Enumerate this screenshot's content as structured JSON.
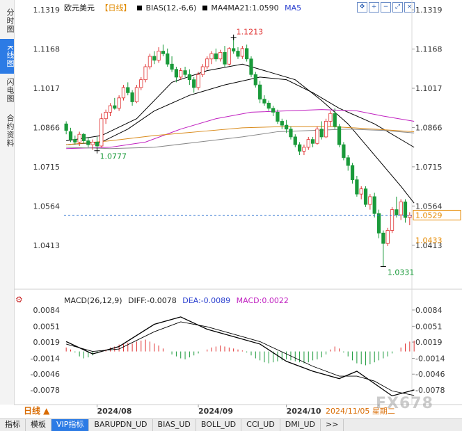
{
  "left_tabs": [
    {
      "label": "分时图",
      "active": false
    },
    {
      "label": "K线图",
      "active": true
    },
    {
      "label": "闪电图",
      "active": false
    },
    {
      "label": "合约资料",
      "active": false
    }
  ],
  "header": {
    "symbol": "欧元美元",
    "period": "【日线】",
    "bias": "BIAS(12,-6,6)",
    "ma": "MA4MA21:1.0590",
    "ma5": "MA5"
  },
  "toolbar_icons": [
    "move-icon",
    "zoom-in-icon",
    "zoom-out-icon",
    "fullscreen-icon",
    "close-icon"
  ],
  "colors": {
    "up": "#e03030",
    "down": "#1a9a3a",
    "ma_black": "#000000",
    "ma_purple": "#c020c0",
    "ma_orange": "#d98a1a",
    "ma_gray": "#888888",
    "price_line": "#2a6fcf",
    "current_box": "#e68a00"
  },
  "chart_data": [
    {
      "type": "candlestick",
      "title": "",
      "ylim": [
        1.026,
        1.133
      ],
      "y_ticks": [
        "1.1319",
        "1.1168",
        "1.1017",
        "1.0866",
        "1.0715",
        "1.0564",
        "1.0413"
      ],
      "y_tick_values": [
        1.1319,
        1.1168,
        1.1017,
        1.0866,
        1.0715,
        1.0564,
        1.0413
      ],
      "x_ticks": [
        "2024/08",
        "2024/09",
        "2024/10",
        "2"
      ],
      "x_tick_index": [
        7,
        30,
        50,
        71
      ],
      "date_label": "2024/11/05 星期二",
      "annotations": {
        "high": "1.1213",
        "low_left": "1.0777",
        "low_right": "1.0331"
      },
      "current_price": "1.0529",
      "current_value": 1.0529,
      "secondary_price": "1.0433",
      "secondary_value": 1.0433,
      "ohlc": [
        [
          1.088,
          1.089,
          1.084,
          1.0855
        ],
        [
          1.085,
          1.0865,
          1.081,
          1.082
        ],
        [
          1.082,
          1.0835,
          1.08,
          1.081
        ],
        [
          1.081,
          1.085,
          1.0795,
          1.084
        ],
        [
          1.084,
          1.0845,
          1.0805,
          1.0815
        ],
        [
          1.0815,
          1.083,
          1.079,
          1.08
        ],
        [
          1.08,
          1.082,
          1.078,
          1.081
        ],
        [
          1.081,
          1.083,
          1.0777,
          1.0795
        ],
        [
          1.0795,
          1.092,
          1.079,
          1.09
        ],
        [
          1.09,
          1.0935,
          1.088,
          1.0925
        ],
        [
          1.0925,
          1.096,
          1.091,
          1.095
        ],
        [
          1.095,
          1.098,
          1.0935,
          1.094
        ],
        [
          1.094,
          1.099,
          1.093,
          1.098
        ],
        [
          1.098,
          1.103,
          1.097,
          1.102
        ],
        [
          1.102,
          1.104,
          1.099,
          1.1
        ],
        [
          1.1,
          1.101,
          1.095,
          1.0965
        ],
        [
          1.0965,
          1.103,
          1.096,
          1.102
        ],
        [
          1.102,
          1.106,
          1.101,
          1.105
        ],
        [
          1.105,
          1.111,
          1.104,
          1.11
        ],
        [
          1.11,
          1.115,
          1.109,
          1.114
        ],
        [
          1.114,
          1.116,
          1.111,
          1.1125
        ],
        [
          1.1125,
          1.1175,
          1.1115,
          1.116
        ],
        [
          1.116,
          1.1185,
          1.114,
          1.115
        ],
        [
          1.115,
          1.117,
          1.11,
          1.111
        ],
        [
          1.111,
          1.114,
          1.108,
          1.109
        ],
        [
          1.109,
          1.11,
          1.104,
          1.106
        ],
        [
          1.106,
          1.1095,
          1.105,
          1.1085
        ],
        [
          1.1085,
          1.11,
          1.106,
          1.107
        ],
        [
          1.107,
          1.109,
          1.103,
          1.105
        ],
        [
          1.105,
          1.106,
          1.1,
          1.102
        ],
        [
          1.102,
          1.108,
          1.101,
          1.107
        ],
        [
          1.107,
          1.111,
          1.106,
          1.11
        ],
        [
          1.11,
          1.114,
          1.109,
          1.113
        ],
        [
          1.113,
          1.116,
          1.111,
          1.115
        ],
        [
          1.115,
          1.117,
          1.112,
          1.113
        ],
        [
          1.113,
          1.1165,
          1.112,
          1.1155
        ],
        [
          1.1155,
          1.118,
          1.11,
          1.111
        ],
        [
          1.111,
          1.1175,
          1.1105,
          1.117
        ],
        [
          1.117,
          1.1213,
          1.115,
          1.116
        ],
        [
          1.116,
          1.1175,
          1.113,
          1.114
        ],
        [
          1.114,
          1.118,
          1.113,
          1.117
        ],
        [
          1.117,
          1.1185,
          1.112,
          1.113
        ],
        [
          1.113,
          1.114,
          1.106,
          1.107
        ],
        [
          1.107,
          1.108,
          1.102,
          1.103
        ],
        [
          1.103,
          1.1045,
          1.096,
          1.0975
        ],
        [
          1.0975,
          1.099,
          1.095,
          1.096
        ],
        [
          1.096,
          1.097,
          1.093,
          1.094
        ],
        [
          1.094,
          1.095,
          1.091,
          1.0925
        ],
        [
          1.0925,
          1.0935,
          1.088,
          1.089
        ],
        [
          1.089,
          1.09,
          1.086,
          1.0875
        ],
        [
          1.0875,
          1.0895,
          1.0845,
          1.086
        ],
        [
          1.086,
          1.087,
          1.082,
          1.083
        ],
        [
          1.083,
          1.084,
          1.079,
          1.08
        ],
        [
          1.08,
          1.081,
          1.076,
          1.0775
        ],
        [
          1.0775,
          1.08,
          1.076,
          1.079
        ],
        [
          1.079,
          1.083,
          1.078,
          1.082
        ],
        [
          1.082,
          1.083,
          1.079,
          1.0805
        ],
        [
          1.0805,
          1.087,
          1.08,
          1.086
        ],
        [
          1.086,
          1.089,
          1.082,
          1.083
        ],
        [
          1.083,
          1.09,
          1.0825,
          1.089
        ],
        [
          1.089,
          1.093,
          1.087,
          1.092
        ],
        [
          1.092,
          1.094,
          1.086,
          1.087
        ],
        [
          1.087,
          1.088,
          1.079,
          1.08
        ],
        [
          1.08,
          1.081,
          1.074,
          1.075
        ],
        [
          1.075,
          1.076,
          1.07,
          1.072
        ],
        [
          1.072,
          1.073,
          1.065,
          1.0665
        ],
        [
          1.0665,
          1.068,
          1.06,
          1.061
        ],
        [
          1.061,
          1.064,
          1.059,
          1.063
        ],
        [
          1.063,
          1.064,
          1.056,
          1.057
        ],
        [
          1.057,
          1.061,
          1.055,
          1.06
        ],
        [
          1.06,
          1.0615,
          1.052,
          1.0535
        ],
        [
          1.0535,
          1.055,
          1.044,
          1.046
        ],
        [
          1.046,
          1.047,
          1.0331,
          1.042
        ],
        [
          1.042,
          1.048,
          1.041,
          1.047
        ],
        [
          1.047,
          1.056,
          1.046,
          1.055
        ],
        [
          1.055,
          1.06,
          1.052,
          1.053
        ],
        [
          1.053,
          1.059,
          1.051,
          1.058
        ],
        [
          1.058,
          1.059,
          1.05,
          1.052
        ],
        [
          1.052,
          1.054,
          1.049,
          1.0529
        ]
      ],
      "ma_lines": [
        {
          "color": "#000000",
          "points": [
            [
              0,
              1.0815
            ],
            [
              8,
              1.0835
            ],
            [
              16,
              1.09
            ],
            [
              24,
              1.104
            ],
            [
              32,
              1.1085
            ],
            [
              40,
              1.111
            ],
            [
              46,
              1.108
            ],
            [
              52,
              1.105
            ],
            [
              58,
              1.097
            ],
            [
              64,
              1.088
            ],
            [
              70,
              1.076
            ],
            [
              76,
              1.064
            ],
            [
              79,
              1.0575
            ]
          ]
        },
        {
          "color": "#000000",
          "points": [
            [
              0,
              1.08
            ],
            [
              8,
              1.081
            ],
            [
              14,
              1.086
            ],
            [
              20,
              1.093
            ],
            [
              28,
              1.099
            ],
            [
              36,
              1.103
            ],
            [
              44,
              1.106
            ],
            [
              50,
              1.105
            ],
            [
              56,
              1.1
            ],
            [
              62,
              1.094
            ],
            [
              70,
              1.088
            ],
            [
              79,
              1.079
            ]
          ]
        },
        {
          "color": "#c020c0",
          "points": [
            [
              0,
              1.0785
            ],
            [
              10,
              1.079
            ],
            [
              18,
              1.081
            ],
            [
              26,
              1.086
            ],
            [
              34,
              1.09
            ],
            [
              42,
              1.0925
            ],
            [
              50,
              1.093
            ],
            [
              58,
              1.0935
            ],
            [
              66,
              1.093
            ],
            [
              72,
              1.091
            ],
            [
              79,
              1.089
            ]
          ]
        },
        {
          "color": "#d98a1a",
          "points": [
            [
              0,
              1.08
            ],
            [
              10,
              1.0815
            ],
            [
              20,
              1.0835
            ],
            [
              30,
              1.085
            ],
            [
              40,
              1.0865
            ],
            [
              50,
              1.087
            ],
            [
              60,
              1.087
            ],
            [
              70,
              1.086
            ],
            [
              79,
              1.085
            ]
          ]
        },
        {
          "color": "#888888",
          "points": [
            [
              0,
              1.079
            ],
            [
              10,
              1.0785
            ],
            [
              20,
              1.079
            ],
            [
              30,
              1.081
            ],
            [
              40,
              1.083
            ],
            [
              48,
              1.085
            ],
            [
              56,
              1.0855
            ],
            [
              64,
              1.086
            ],
            [
              72,
              1.0855
            ],
            [
              79,
              1.0845
            ]
          ]
        }
      ]
    },
    {
      "type": "macd",
      "title": "MACD(26,12,9)",
      "diff_label": "DIFF:-0.0078",
      "dea_label": "DEA:-0.0089",
      "macd_label": "MACD:0.0022",
      "ylim": [
        -0.0102,
        0.0098
      ],
      "y_ticks": [
        "0.0084",
        "0.0051",
        "0.0019",
        "-0.0014",
        "-0.0046",
        "-0.0078"
      ],
      "y_tick_values": [
        0.0084,
        0.0051,
        0.0019,
        -0.0014,
        -0.0046,
        -0.0078
      ],
      "diff": [
        [
          0,
          0.002
        ],
        [
          6,
          -0.0005
        ],
        [
          12,
          0.001
        ],
        [
          20,
          0.0055
        ],
        [
          26,
          0.007
        ],
        [
          32,
          0.0045
        ],
        [
          38,
          0.003
        ],
        [
          44,
          0.0015
        ],
        [
          50,
          -0.002
        ],
        [
          56,
          -0.004
        ],
        [
          62,
          -0.0055
        ],
        [
          66,
          -0.004
        ],
        [
          70,
          -0.0065
        ],
        [
          74,
          -0.009
        ],
        [
          79,
          -0.0078
        ]
      ],
      "dea": [
        [
          0,
          0.0015
        ],
        [
          6,
          0.0
        ],
        [
          12,
          0.0005
        ],
        [
          20,
          0.004
        ],
        [
          26,
          0.006
        ],
        [
          32,
          0.005
        ],
        [
          38,
          0.0035
        ],
        [
          44,
          0.002
        ],
        [
          50,
          -0.0005
        ],
        [
          56,
          -0.003
        ],
        [
          62,
          -0.005
        ],
        [
          66,
          -0.005
        ],
        [
          70,
          -0.006
        ],
        [
          74,
          -0.008
        ],
        [
          79,
          -0.0089
        ]
      ],
      "hist": [
        0.0008,
        0.0004,
        -0.0002,
        -0.001,
        -0.0014,
        -0.0012,
        -0.0008,
        -0.0004,
        0.0,
        0.0004,
        0.0008,
        0.001,
        0.0014,
        0.0016,
        0.0018,
        0.0016,
        0.002,
        0.0022,
        0.0024,
        0.002,
        0.0016,
        0.0012,
        0.0006,
        0.0,
        -0.0006,
        -0.001,
        -0.0014,
        -0.0016,
        -0.0012,
        -0.0008,
        -0.0004,
        0.0,
        0.0004,
        0.0008,
        0.001,
        0.0012,
        0.001,
        0.0008,
        0.0006,
        0.0004,
        0.0002,
        -0.0002,
        -0.0008,
        -0.0014,
        -0.0018,
        -0.0022,
        -0.0024,
        -0.0022,
        -0.002,
        -0.0018,
        -0.0016,
        -0.0018,
        -0.002,
        -0.0022,
        -0.0024,
        -0.0022,
        -0.0018,
        -0.0016,
        -0.0012,
        -0.0006,
        0.0004,
        0.001,
        0.0006,
        -0.0002,
        -0.001,
        -0.0018,
        -0.0024,
        -0.0026,
        -0.0028,
        -0.0026,
        -0.0022,
        -0.0018,
        -0.0014,
        -0.001,
        -0.0004,
        0.0,
        0.0008,
        0.0016,
        0.002,
        0.0022
      ]
    }
  ],
  "period_label": "日线 ▲",
  "bottom_tabs": [
    "指标",
    "模板",
    "VIP指标",
    "BARUPDN_UD",
    "BIAS_UD",
    "BOLL_UD",
    "CCI_UD",
    "DMI_UD",
    ">>"
  ],
  "watermark": "FX678"
}
